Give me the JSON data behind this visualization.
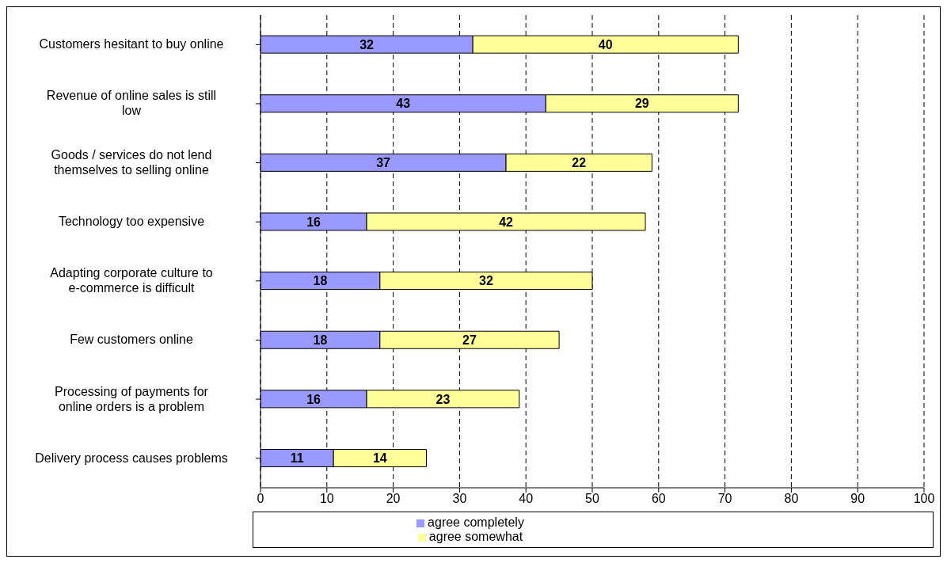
{
  "chart_data": {
    "type": "bar",
    "orientation": "horizontal",
    "stacked": true,
    "categories": [
      "Customers hesitant to buy online",
      "Revenue of online sales is still low",
      "Goods / services do not lend themselves to selling online",
      "Technology too expensive",
      "Adapting corporate culture to e-commerce is difficult",
      "Few customers online",
      "Processing of payments for online orders is a problem",
      "Delivery process causes problems"
    ],
    "series": [
      {
        "name": "agree completely",
        "color": "#9999ff",
        "values": [
          32,
          43,
          37,
          16,
          18,
          18,
          16,
          11
        ]
      },
      {
        "name": "agree somewhat",
        "color": "#ffff99",
        "values": [
          40,
          29,
          22,
          42,
          32,
          27,
          23,
          14
        ]
      }
    ],
    "xlim": [
      0,
      100
    ],
    "xticks": [
      0,
      10,
      20,
      30,
      40,
      50,
      60,
      70,
      80,
      90,
      100
    ],
    "grid": "x",
    "legend": "bottom",
    "data_labels": true
  }
}
